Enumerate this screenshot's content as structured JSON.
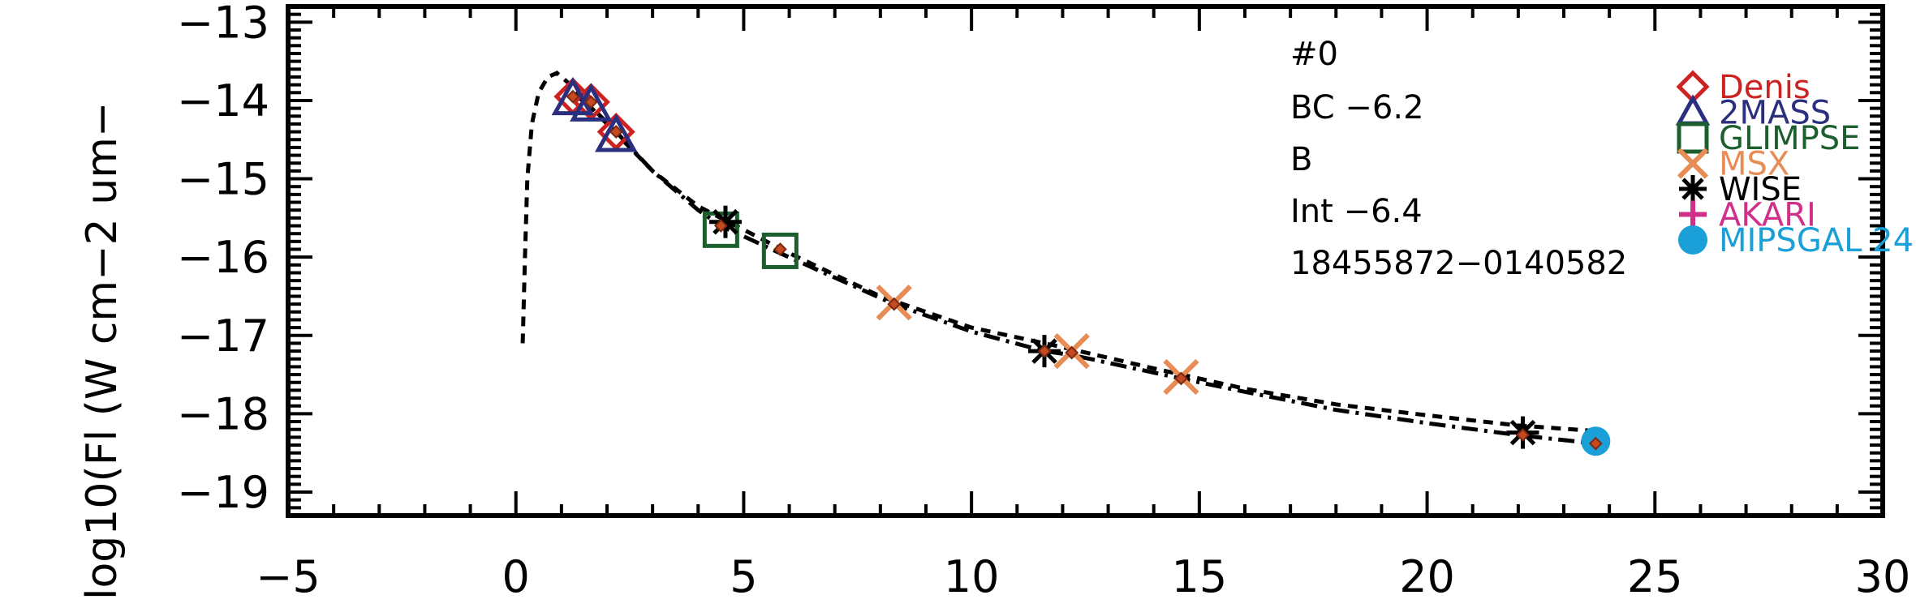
{
  "chart_data": {
    "type": "scatter",
    "title": "",
    "xlabel": "",
    "ylabel": "log10(Fl (W cm−2 um−",
    "xlim": [
      -5,
      30
    ],
    "ylim": [
      -19.3,
      -12.8
    ],
    "xticks": [
      -5,
      0,
      5,
      10,
      15,
      20,
      25,
      30
    ],
    "xtick_labels": [
      "−5",
      "0",
      "5",
      "10",
      "15",
      "20",
      "25",
      "30"
    ],
    "yticks": [
      -13,
      -14,
      -15,
      -16,
      -17,
      -18,
      -19
    ],
    "ytick_labels": [
      "−13",
      "−14",
      "−15",
      "−16",
      "−17",
      "−18",
      "−19"
    ],
    "grid": false,
    "legend_position": "top-right",
    "annotations": [
      "#0",
      "BC −6.2",
      "B",
      "Int −6.4",
      "18455872−0140582"
    ],
    "model_curves": [
      {
        "style": "dashed",
        "points": [
          [
            0.15,
            -17.1
          ],
          [
            0.2,
            -16.0
          ],
          [
            0.25,
            -15.0
          ],
          [
            0.35,
            -14.3
          ],
          [
            0.5,
            -13.9
          ],
          [
            0.7,
            -13.7
          ],
          [
            0.9,
            -13.65
          ],
          [
            1.2,
            -13.8
          ],
          [
            1.5,
            -14.0
          ],
          [
            2.0,
            -14.3
          ],
          [
            3.0,
            -14.9
          ],
          [
            4.0,
            -15.35
          ],
          [
            5.0,
            -15.65
          ],
          [
            6.0,
            -15.95
          ],
          [
            8.0,
            -16.5
          ],
          [
            10.0,
            -16.9
          ],
          [
            12.0,
            -17.15
          ],
          [
            14.0,
            -17.42
          ],
          [
            16.0,
            -17.68
          ],
          [
            18.0,
            -17.88
          ],
          [
            20.0,
            -18.02
          ],
          [
            22.0,
            -18.15
          ],
          [
            23.7,
            -18.22
          ]
        ]
      },
      {
        "style": "dash-dot",
        "points": [
          [
            1.2,
            -13.9
          ],
          [
            1.6,
            -14.05
          ],
          [
            2.2,
            -14.4
          ],
          [
            3.0,
            -14.9
          ],
          [
            4.0,
            -15.4
          ],
          [
            4.5,
            -15.6
          ],
          [
            5.8,
            -15.95
          ],
          [
            8.3,
            -16.6
          ],
          [
            10.0,
            -16.95
          ],
          [
            11.6,
            -17.2
          ],
          [
            12.2,
            -17.25
          ],
          [
            14.6,
            -17.55
          ],
          [
            16.0,
            -17.72
          ],
          [
            18.0,
            -17.95
          ],
          [
            20.0,
            -18.12
          ],
          [
            22.1,
            -18.28
          ],
          [
            23.7,
            -18.38
          ]
        ]
      }
    ],
    "series": [
      {
        "name": "Denis",
        "marker": "diamond",
        "color": "#cc2222",
        "points": [
          [
            1.25,
            -13.95
          ],
          [
            1.65,
            -14.02
          ],
          [
            2.2,
            -14.4
          ]
        ]
      },
      {
        "name": "2MASS",
        "marker": "triangle",
        "color": "#2a2f7f",
        "points": [
          [
            1.25,
            -13.98
          ],
          [
            1.65,
            -14.06
          ],
          [
            2.2,
            -14.45
          ]
        ]
      },
      {
        "name": "GLIMPSE",
        "marker": "square",
        "color": "#1d5e2f",
        "points": [
          [
            4.5,
            -15.65
          ],
          [
            5.8,
            -15.92
          ]
        ]
      },
      {
        "name": "MSX",
        "marker": "x",
        "color": "#e88c55",
        "points": [
          [
            8.3,
            -16.58
          ],
          [
            12.2,
            -17.2
          ],
          [
            14.6,
            -17.53
          ]
        ]
      },
      {
        "name": "WISE",
        "marker": "asterisk",
        "color": "#000000",
        "points": [
          [
            4.6,
            -15.55
          ],
          [
            11.6,
            -17.2
          ],
          [
            22.1,
            -18.24
          ]
        ]
      },
      {
        "name": "AKARI",
        "marker": "plus",
        "color": "#d0308a",
        "points": []
      },
      {
        "name": "MIPSGAL 24",
        "marker": "circle",
        "color": "#1a9fd8",
        "points": [
          [
            23.7,
            -18.35
          ]
        ]
      }
    ],
    "fit_points": {
      "name": "",
      "marker": "small-diamond",
      "color": "#c44a22",
      "points": [
        [
          1.25,
          -13.95
        ],
        [
          1.65,
          -14.02
        ],
        [
          2.2,
          -14.4
        ],
        [
          4.5,
          -15.6
        ],
        [
          5.8,
          -15.9
        ],
        [
          8.3,
          -16.6
        ],
        [
          11.6,
          -17.2
        ],
        [
          12.2,
          -17.22
        ],
        [
          14.6,
          -17.55
        ],
        [
          22.1,
          -18.27
        ],
        [
          23.7,
          -18.38
        ]
      ]
    }
  }
}
